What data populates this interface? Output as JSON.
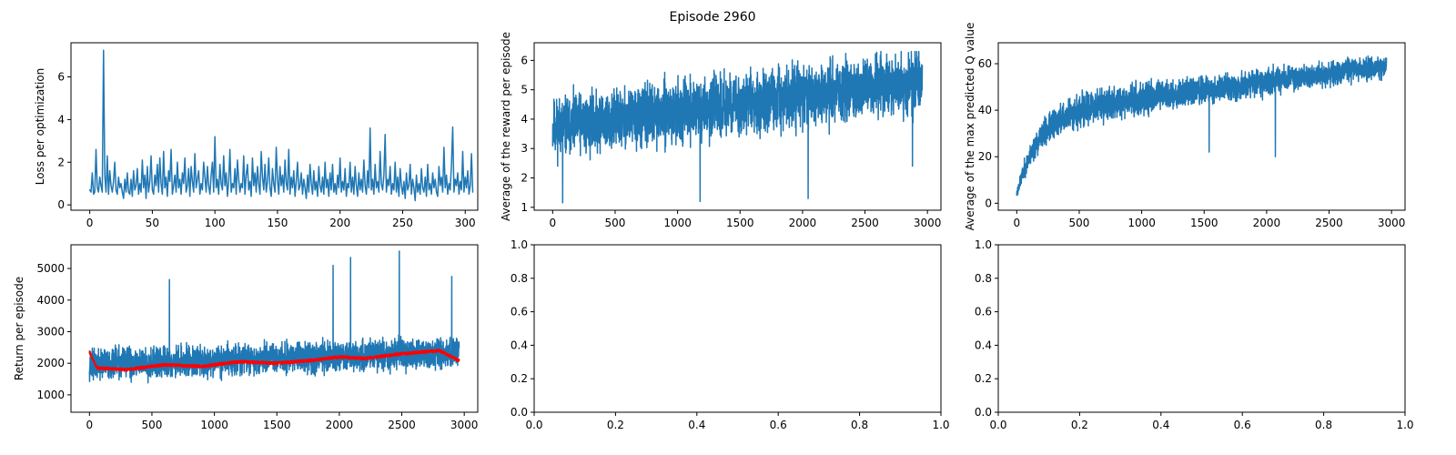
{
  "figure": {
    "title": "Episode 2960"
  },
  "colors": {
    "primary": "#1f77b4",
    "smooth": "#ff0000"
  },
  "chart_data": [
    {
      "id": "loss",
      "type": "line",
      "ylabel": "Loss per optimization",
      "xlim": [
        -15,
        310
      ],
      "ylim": [
        -0.25,
        7.6
      ],
      "xticks": [
        0,
        50,
        100,
        150,
        200,
        250,
        300
      ],
      "yticks": [
        0,
        2,
        4,
        6
      ],
      "series": [
        {
          "color": "#1f77b4",
          "values": [
            0.7,
            0.6,
            1.5,
            0.5,
            0.6,
            2.6,
            0.8,
            0.6,
            1.3,
            0.9,
            0.6,
            7.25,
            1.4,
            0.6,
            2.3,
            0.5,
            1.6,
            0.9,
            0.6,
            1.1,
            2.0,
            0.7,
            0.5,
            1.3,
            0.8,
            1.0,
            0.6,
            0.3,
            1.2,
            0.6,
            1.5,
            0.6,
            0.5,
            1.2,
            0.4,
            1.6,
            0.7,
            0.9,
            1.7,
            0.5,
            1.0,
            0.6,
            2.1,
            0.8,
            1.4,
            0.3,
            1.8,
            0.6,
            1.1,
            2.3,
            0.7,
            0.5,
            1.4,
            0.9,
            1.9,
            0.6,
            2.2,
            1.0,
            0.5,
            2.5,
            0.8,
            1.3,
            0.4,
            1.6,
            1.1,
            2.6,
            0.5,
            0.9,
            1.4,
            0.6,
            2.0,
            0.8,
            1.2,
            0.5,
            1.5,
            1.0,
            2.2,
            0.6,
            0.9,
            1.7,
            0.4,
            1.8,
            1.1,
            0.6,
            2.4,
            0.8,
            1.2,
            1.6,
            0.5,
            1.0,
            0.7,
            2.0,
            1.3,
            0.6,
            1.8,
            0.9,
            0.5,
            1.4,
            2.0,
            0.6,
            3.2,
            0.8,
            1.2,
            0.5,
            1.9,
            1.0,
            0.7,
            2.3,
            0.9,
            1.5,
            0.4,
            1.1,
            2.6,
            0.6,
            1.0,
            0.8,
            1.7,
            0.5,
            2.1,
            1.2,
            0.6,
            1.0,
            0.8,
            2.3,
            0.5,
            1.4,
            1.9,
            0.7,
            1.1,
            0.4,
            2.2,
            0.9,
            1.5,
            0.6,
            1.8,
            1.0,
            0.5,
            2.5,
            1.3,
            0.7,
            1.9,
            0.6,
            1.1,
            2.2,
            0.8,
            0.4,
            1.7,
            1.0,
            0.6,
            2.7,
            1.2,
            0.5,
            1.8,
            0.9,
            1.4,
            0.6,
            2.1,
            1.0,
            0.7,
            2.6,
            0.5,
            1.3,
            0.8,
            1.6,
            0.4,
            1.1,
            2.0,
            0.7,
            0.9,
            1.5,
            0.5,
            1.2,
            0.8,
            0.3,
            1.4,
            0.6,
            1.9,
            1.0,
            0.5,
            1.6,
            0.7,
            1.1,
            0.4,
            1.8,
            0.9,
            0.6,
            1.3,
            0.5,
            2.0,
            0.8,
            1.2,
            0.4,
            1.5,
            0.7,
            1.9,
            0.6,
            1.0,
            0.5,
            1.4,
            0.8,
            2.2,
            0.6,
            1.1,
            0.7,
            1.7,
            0.4,
            1.0,
            0.8,
            2.0,
            0.6,
            1.3,
            0.5,
            1.8,
            0.9,
            0.4,
            1.5,
            0.7,
            1.2,
            0.6,
            2.1,
            0.9,
            0.5,
            1.6,
            0.8,
            3.6,
            0.7,
            1.2,
            0.5,
            1.9,
            0.8,
            1.1,
            0.6,
            2.5,
            1.0,
            0.7,
            1.4,
            3.3,
            0.6,
            1.2,
            0.9,
            1.8,
            0.5,
            1.0,
            0.7,
            2.0,
            0.6,
            1.3,
            0.4,
            1.7,
            0.9,
            0.5,
            1.1,
            0.3,
            1.5,
            0.7,
            0.9,
            1.9,
            0.5,
            1.2,
            0.8,
            0.2,
            1.4,
            0.6,
            1.0,
            0.5,
            1.7,
            0.8,
            0.6,
            1.3,
            0.4,
            1.9,
            0.7,
            1.0,
            0.5,
            1.5,
            0.8,
            1.2,
            0.6,
            0.4,
            1.8,
            0.9,
            1.3,
            0.6,
            2.7,
            0.8,
            1.4,
            0.5,
            1.0,
            0.7,
            1.9,
            3.65,
            0.6,
            1.2,
            0.9,
            1.5,
            0.5,
            1.1,
            0.7,
            2.5,
            0.6,
            1.3,
            0.8,
            1.6,
            0.5,
            0.9,
            2.4,
            0.6
          ]
        }
      ]
    },
    {
      "id": "reward",
      "type": "line",
      "ylabel": "Average of the reward per episode",
      "xlim": [
        -148,
        3108
      ],
      "ylim": [
        0.9,
        6.6
      ],
      "xticks": [
        0,
        500,
        1000,
        1500,
        2000,
        2500,
        3000
      ],
      "yticks": [
        1,
        2,
        3,
        4,
        5,
        6
      ],
      "series": [
        {
          "color": "#1f77b4",
          "n": 2960,
          "generator": "noisy-trend",
          "trend_start": 3.7,
          "trend_end": 5.3,
          "spread": 1.45,
          "low": 1.15,
          "high": 6.3,
          "dips": [
            [
              80,
              1.15
            ],
            [
              1180,
              1.2
            ],
            [
              2045,
              1.3
            ],
            [
              2880,
              2.4
            ]
          ],
          "seed": 11
        }
      ]
    },
    {
      "id": "q_value",
      "type": "line",
      "ylabel": "Average of the max predicted Q value",
      "xlim": [
        -148,
        3108
      ],
      "ylim": [
        -3,
        69
      ],
      "xticks": [
        0,
        500,
        1000,
        1500,
        2000,
        2500,
        3000
      ],
      "yticks": [
        0,
        20,
        40,
        60
      ],
      "series": [
        {
          "color": "#1f77b4",
          "n": 2960,
          "generator": "saturating",
          "start": 4,
          "plateau_start": 38,
          "plateau_end": 59,
          "rise_episodes": 500,
          "spread": 11,
          "low": 2,
          "high": 66,
          "dips": [
            [
              2070,
              20
            ],
            [
              1540,
              22
            ]
          ],
          "seed": 23
        }
      ]
    },
    {
      "id": "return",
      "type": "line",
      "ylabel": "Return per episode",
      "xlim": [
        -148,
        3108
      ],
      "ylim": [
        450,
        5750
      ],
      "xticks": [
        0,
        500,
        1000,
        1500,
        2000,
        2500,
        3000
      ],
      "yticks": [
        1000,
        2000,
        3000,
        4000,
        5000
      ],
      "series": [
        {
          "color": "#1f77b4",
          "n": 2960,
          "generator": "noisy-trend",
          "trend_start": 1950,
          "trend_end": 2350,
          "spread": 700,
          "low": 650,
          "high": 5550,
          "dips": [],
          "peaks": [
            [
              640,
              4650
            ],
            [
              1950,
              5100
            ],
            [
              2090,
              5350
            ],
            [
              2480,
              5550
            ],
            [
              2900,
              4750
            ]
          ],
          "seed": 37
        },
        {
          "color": "#ff0000",
          "n": 2960,
          "generator": "moving-average",
          "values_anchor": [
            [
              0,
              2350
            ],
            [
              60,
              1850
            ],
            [
              300,
              1800
            ],
            [
              600,
              1950
            ],
            [
              900,
              1900
            ],
            [
              1200,
              2050
            ],
            [
              1500,
              2000
            ],
            [
              1800,
              2100
            ],
            [
              2000,
              2200
            ],
            [
              2200,
              2150
            ],
            [
              2500,
              2300
            ],
            [
              2800,
              2400
            ],
            [
              2950,
              2100
            ]
          ],
          "seed": 41
        }
      ]
    },
    {
      "id": "empty_1",
      "type": "line",
      "ylabel": "",
      "xlim": [
        0,
        1
      ],
      "ylim": [
        0,
        1
      ],
      "xticks": [
        0.0,
        0.2,
        0.4,
        0.6,
        0.8,
        1.0
      ],
      "yticks": [
        0.0,
        0.2,
        0.4,
        0.6,
        0.8,
        1.0
      ],
      "tick_format": "one-decimal",
      "series": []
    },
    {
      "id": "empty_2",
      "type": "line",
      "ylabel": "",
      "xlim": [
        0,
        1
      ],
      "ylim": [
        0,
        1
      ],
      "xticks": [
        0.0,
        0.2,
        0.4,
        0.6,
        0.8,
        1.0
      ],
      "yticks": [
        0.0,
        0.2,
        0.4,
        0.6,
        0.8,
        1.0
      ],
      "tick_format": "one-decimal",
      "series": []
    }
  ]
}
